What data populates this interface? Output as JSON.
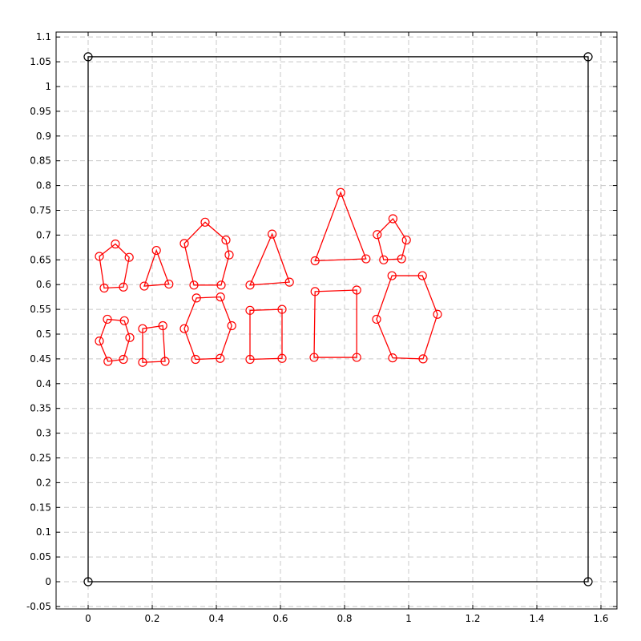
{
  "chart_data": {
    "type": "line",
    "title": "",
    "xlabel": "",
    "ylabel": "",
    "xlim": [
      -0.1,
      1.65
    ],
    "ylim": [
      -0.055,
      1.11
    ],
    "grid": true,
    "x_ticks": [
      0,
      0.2,
      0.4,
      0.6,
      0.8,
      1,
      1.2,
      1.4,
      1.6
    ],
    "y_ticks": [
      -0.05,
      0,
      0.05,
      0.1,
      0.15,
      0.2,
      0.25,
      0.3,
      0.35,
      0.4,
      0.45,
      0.5,
      0.55,
      0.6,
      0.65,
      0.7,
      0.75,
      0.8,
      0.85,
      0.9,
      0.95,
      1,
      1.05,
      1.1
    ],
    "x_tick_labels": [
      "0",
      "0.2",
      "0.4",
      "0.6",
      "0.8",
      "1",
      "1.2",
      "1.4",
      "1.6"
    ],
    "y_tick_labels": [
      "-0.05",
      "0",
      "0.05",
      "0.1",
      "0.15",
      "0.2",
      "0.25",
      "0.3",
      "0.35",
      "0.4",
      "0.45",
      "0.5",
      "0.55",
      "0.6",
      "0.65",
      "0.7",
      "0.75",
      "0.8",
      "0.85",
      "0.9",
      "0.95",
      "1",
      "1.05",
      "1.1"
    ],
    "series": [
      {
        "color": "#000000",
        "closed": true,
        "points": [
          [
            0,
            0
          ],
          [
            1.56,
            0
          ],
          [
            1.56,
            1.06
          ],
          [
            0,
            1.06
          ]
        ]
      },
      {
        "color": "#ff0000",
        "closed": true,
        "points": [
          [
            0.05,
            0.593
          ],
          [
            0.11,
            0.595
          ],
          [
            0.128,
            0.655
          ],
          [
            0.085,
            0.682
          ],
          [
            0.035,
            0.657
          ]
        ]
      },
      {
        "color": "#ff0000",
        "closed": true,
        "points": [
          [
            0.175,
            0.597
          ],
          [
            0.252,
            0.601
          ],
          [
            0.213,
            0.669
          ]
        ]
      },
      {
        "color": "#ff0000",
        "closed": true,
        "points": [
          [
            0.33,
            0.599
          ],
          [
            0.415,
            0.599
          ],
          [
            0.44,
            0.66
          ],
          [
            0.43,
            0.69
          ],
          [
            0.365,
            0.726
          ],
          [
            0.3,
            0.683
          ]
        ]
      },
      {
        "color": "#ff0000",
        "closed": true,
        "points": [
          [
            0.505,
            0.599
          ],
          [
            0.628,
            0.605
          ],
          [
            0.574,
            0.702
          ]
        ]
      },
      {
        "color": "#ff0000",
        "closed": true,
        "points": [
          [
            0.708,
            0.648
          ],
          [
            0.867,
            0.652
          ],
          [
            0.788,
            0.786
          ]
        ]
      },
      {
        "color": "#ff0000",
        "closed": true,
        "points": [
          [
            0.922,
            0.65
          ],
          [
            0.978,
            0.652
          ],
          [
            0.993,
            0.69
          ],
          [
            0.951,
            0.733
          ],
          [
            0.902,
            0.701
          ]
        ]
      },
      {
        "color": "#ff0000",
        "closed": true,
        "points": [
          [
            0.062,
            0.445
          ],
          [
            0.11,
            0.449
          ],
          [
            0.13,
            0.493
          ],
          [
            0.113,
            0.527
          ],
          [
            0.06,
            0.53
          ],
          [
            0.035,
            0.486
          ]
        ]
      },
      {
        "color": "#ff0000",
        "closed": true,
        "points": [
          [
            0.17,
            0.443
          ],
          [
            0.24,
            0.445
          ],
          [
            0.233,
            0.517
          ],
          [
            0.17,
            0.511
          ]
        ]
      },
      {
        "color": "#ff0000",
        "closed": true,
        "points": [
          [
            0.335,
            0.449
          ],
          [
            0.412,
            0.451
          ],
          [
            0.448,
            0.517
          ],
          [
            0.413,
            0.575
          ],
          [
            0.338,
            0.573
          ],
          [
            0.3,
            0.511
          ]
        ]
      },
      {
        "color": "#ff0000",
        "closed": true,
        "points": [
          [
            0.505,
            0.449
          ],
          [
            0.605,
            0.451
          ],
          [
            0.605,
            0.55
          ],
          [
            0.505,
            0.548
          ]
        ]
      },
      {
        "color": "#ff0000",
        "closed": true,
        "points": [
          [
            0.705,
            0.453
          ],
          [
            0.838,
            0.453
          ],
          [
            0.838,
            0.589
          ],
          [
            0.708,
            0.586
          ]
        ]
      },
      {
        "color": "#ff0000",
        "closed": true,
        "points": [
          [
            0.95,
            0.452
          ],
          [
            1.045,
            0.45
          ],
          [
            1.09,
            0.54
          ],
          [
            1.043,
            0.618
          ],
          [
            0.948,
            0.618
          ],
          [
            0.9,
            0.53
          ]
        ]
      }
    ]
  }
}
